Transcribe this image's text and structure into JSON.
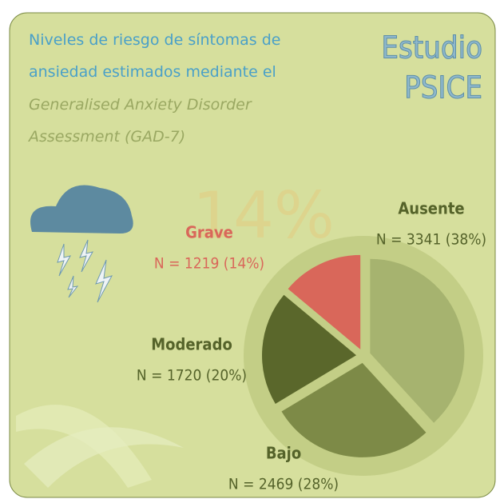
{
  "chart_data": {
    "type": "pie",
    "title": "Niveles de riesgo de síntomas de ansiedad estimados mediante el",
    "subtitle": "Generalised Anxiety Disorder Assessment (GAD-7)",
    "brand": [
      "Estudio",
      "PSICE"
    ],
    "watermark": "14%",
    "categories": [
      "Ausente",
      "Bajo",
      "Moderado",
      "Grave"
    ],
    "values": [
      3341,
      2469,
      1720,
      1219
    ],
    "value_labels": [
      "N = 3341 (38%)",
      "N = 2469 (28%)",
      "N = 1720 (20%)",
      "N = 1219 (14%)"
    ],
    "colors": [
      "#a6b36f",
      "#7d8a47",
      "#5a672b",
      "#d9675a"
    ]
  }
}
